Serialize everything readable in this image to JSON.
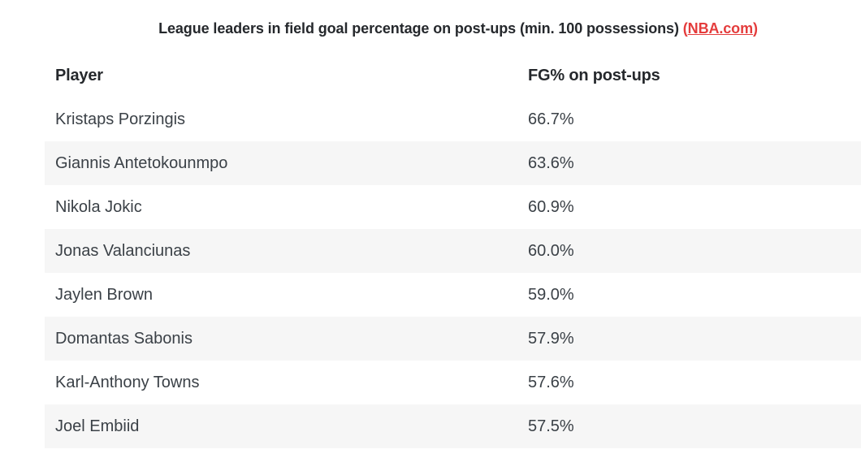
{
  "title": {
    "text": "League leaders in field goal percentage on post-ups (min. 100 possessions)",
    "open_paren": "(",
    "link_label": "NBA.com",
    "close_paren": ")"
  },
  "table": {
    "columns": [
      "Player",
      "FG% on post-ups"
    ],
    "rows": [
      {
        "player": "Kristaps Porzingis",
        "fg_pct": "66.7%"
      },
      {
        "player": "Giannis Antetokounmpo",
        "fg_pct": "63.6%"
      },
      {
        "player": "Nikola Jokic",
        "fg_pct": "60.9%"
      },
      {
        "player": "Jonas Valanciunas",
        "fg_pct": "60.0%"
      },
      {
        "player": "Jaylen Brown",
        "fg_pct": "59.0%"
      },
      {
        "player": "Domantas Sabonis",
        "fg_pct": "57.9%"
      },
      {
        "player": "Karl-Anthony Towns",
        "fg_pct": "57.6%"
      },
      {
        "player": "Joel Embiid",
        "fg_pct": "57.5%"
      }
    ]
  },
  "chart_data": {
    "type": "table",
    "title": "League leaders in field goal percentage on post-ups (min. 100 possessions) (NBA.com)",
    "columns": [
      "Player",
      "FG% on post-ups"
    ],
    "categories": [
      "Kristaps Porzingis",
      "Giannis Antetokounmpo",
      "Nikola Jokic",
      "Jonas Valanciunas",
      "Jaylen Brown",
      "Domantas Sabonis",
      "Karl-Anthony Towns",
      "Joel Embiid"
    ],
    "values": [
      66.7,
      63.6,
      60.9,
      60.0,
      59.0,
      57.9,
      57.6,
      57.5
    ],
    "source": "NBA.com"
  },
  "colors": {
    "link_red": "#e43c3c",
    "row_alt_bg": "#f6f6f6",
    "body_text": "#3b4147",
    "heading_text": "#25282c"
  }
}
